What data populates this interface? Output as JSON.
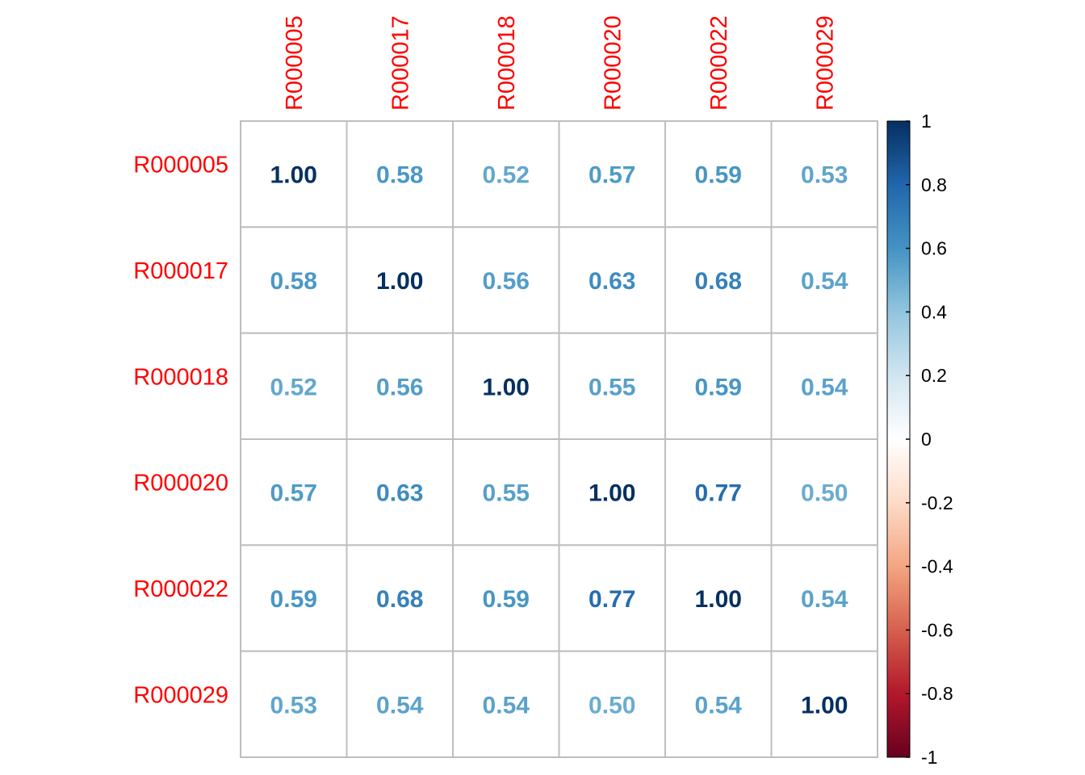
{
  "chart_data": {
    "type": "heatmap",
    "variables": [
      "R000005",
      "R000017",
      "R000018",
      "R000020",
      "R000022",
      "R000029"
    ],
    "matrix": [
      [
        1.0,
        0.58,
        0.52,
        0.57,
        0.59,
        0.53
      ],
      [
        0.58,
        1.0,
        0.56,
        0.63,
        0.68,
        0.54
      ],
      [
        0.52,
        0.56,
        1.0,
        0.55,
        0.59,
        0.54
      ],
      [
        0.57,
        0.63,
        0.55,
        1.0,
        0.77,
        0.5
      ],
      [
        0.59,
        0.68,
        0.59,
        0.77,
        1.0,
        0.54
      ],
      [
        0.53,
        0.54,
        0.54,
        0.5,
        0.54,
        1.0
      ]
    ],
    "value_range": [
      -1,
      1
    ],
    "colorbar": {
      "ticks": [
        1,
        0.8,
        0.6,
        0.4,
        0.2,
        0,
        -0.2,
        -0.4,
        -0.6,
        -0.8,
        -1
      ],
      "tick_labels": [
        "1",
        "0.8",
        "0.6",
        "0.4",
        "0.2",
        "0",
        "-0.2",
        "-0.4",
        "-0.6",
        "-0.8",
        "-1"
      ],
      "palette": [
        "#67001F",
        "#B2182B",
        "#D6604D",
        "#F4A582",
        "#FDDBC7",
        "#FFFFFF",
        "#D1E5F0",
        "#92C5DE",
        "#4393C3",
        "#2166AC",
        "#053061"
      ],
      "placement": "right"
    },
    "label_color": "#FF0000",
    "grid_color": "#BEBEBE",
    "number_format": "2 decimals"
  }
}
